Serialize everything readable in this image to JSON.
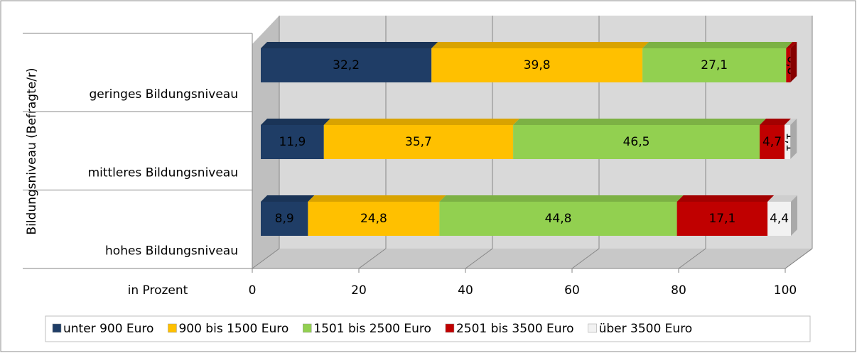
{
  "chart_data": {
    "type": "stacked_bar_horizontal",
    "y_axis_label": "Bildungsniveau (Befragte/r)",
    "x_axis_label": "in Prozent",
    "categories": [
      "geringes Bildungsniveau",
      "mittleres Bildungsniveau",
      "hohes Bildungsniveau"
    ],
    "series": [
      {
        "name": "unter 900 Euro",
        "color": "#1f3d66",
        "values": [
          32.2,
          11.9,
          8.9
        ],
        "value_labels": [
          "32,2",
          "11,9",
          "8,9"
        ]
      },
      {
        "name": "900 bis 1500 Euro",
        "color": "#ffc000",
        "values": [
          39.8,
          35.7,
          24.8
        ],
        "value_labels": [
          "39,8",
          "35,7",
          "24,8"
        ]
      },
      {
        "name": "1501 bis 2500 Euro",
        "color": "#92d050",
        "values": [
          27.1,
          46.5,
          44.8
        ],
        "value_labels": [
          "27,1",
          "46,5",
          "44,8"
        ]
      },
      {
        "name": "2501 bis 3500 Euro",
        "color": "#c00000",
        "values": [
          0.8,
          4.7,
          17.1
        ],
        "value_labels": [
          "0,8",
          "4,7",
          "17,1"
        ]
      },
      {
        "name": "über 3500 Euro",
        "color": "#f2f2f2",
        "values": [
          null,
          1.1,
          4.4
        ],
        "value_labels": [
          null,
          "1,1",
          "4,4"
        ]
      }
    ],
    "xlim": [
      0,
      100
    ],
    "xticks": [
      0,
      20,
      40,
      60,
      80,
      100
    ],
    "grid": true,
    "legend": "bottom"
  }
}
